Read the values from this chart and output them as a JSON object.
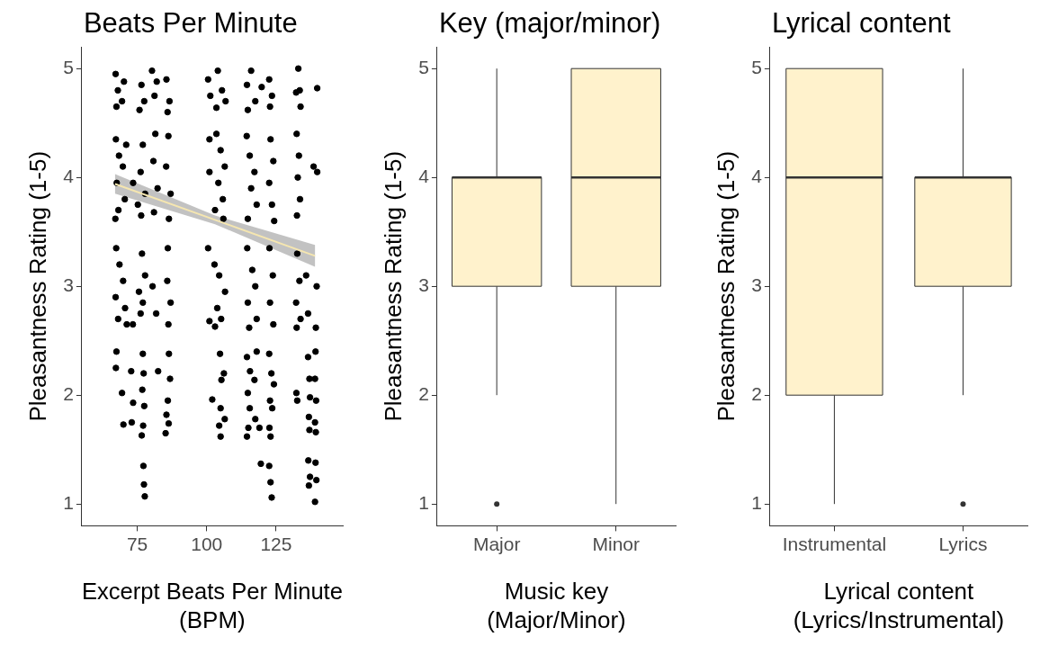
{
  "chart_data": [
    {
      "type": "scatter",
      "title": "Beats Per Minute",
      "xlabel": "Excerpt Beats Per Minute\n(BPM)",
      "ylabel": "Pleasantness Rating (1-5)",
      "xlim": [
        55,
        149
      ],
      "xticks": [
        75,
        100,
        125
      ],
      "ylim": [
        0.8,
        5.2
      ],
      "yticks": [
        1,
        2,
        3,
        4,
        5
      ],
      "grid": false,
      "legend": false,
      "marker": "circle",
      "series": [
        {
          "type": "scatter",
          "color": "#000000",
          "x": [
            67.2,
            68.0,
            69.5,
            67.5,
            70.2,
            67.3,
            68.4,
            69.8,
            67.6,
            70.5,
            68.2,
            67.1,
            71.0,
            67.4,
            68.6,
            69.9,
            67.2,
            70.6,
            68.1,
            71.2,
            67.5,
            67.3,
            69.5,
            70.0,
            73.0,
            73.5,
            72.8,
            77.0,
            77.3,
            76.8,
            77.5,
            77.1,
            76.6,
            77.2,
            77.4,
            77.7,
            76.5,
            77.5,
            75.8,
            77.0,
            76.2,
            77.8,
            76.4,
            75.2,
            73.5,
            76.7,
            77.8,
            75.6,
            76.2,
            73.4,
            77.0,
            80.3,
            81.2,
            82.0,
            81.5,
            80.8,
            82.3,
            81.0,
            80.5,
            81.8,
            82.5,
            85.5,
            86.6,
            85.9,
            86.2,
            85.4,
            87.0,
            86.4,
            86.0,
            85.8,
            87.0,
            86.2,
            86.4,
            86.8,
            86.0,
            85.5,
            85.2,
            86.3,
            100.5,
            104.0,
            105.5,
            106.8,
            101.3,
            103.5,
            101.0,
            103.5,
            105.0,
            106.5,
            104.2,
            105.8,
            103.0,
            106.0,
            101.0,
            100.5,
            102.8,
            104.5,
            106.6,
            103.8,
            105.2,
            101.0,
            103.0,
            104.8,
            106.2,
            105.3,
            102.0,
            105.0,
            106.5,
            104.5,
            105.0,
            114.5,
            116.0,
            117.5,
            114.8,
            119.8,
            114.4,
            115.5,
            117.2,
            116.0,
            118.0,
            114.8,
            114.6,
            116.4,
            117.5,
            114.8,
            118.0,
            115.3,
            114.5,
            115.6,
            118.0,
            117.2,
            114.8,
            115.5,
            117.5,
            115.0,
            114.5,
            119.0,
            119.5,
            122.5,
            123.5,
            122.8,
            123.0,
            124.0,
            122.5,
            123.5,
            124.3,
            122.6,
            123.8,
            122.8,
            124.0,
            122.5,
            123.3,
            124.2,
            122.8,
            123.6,
            122.6,
            123.0,
            122.5,
            123.0,
            123.4,
            133.0,
            133.5,
            132.2,
            133.8,
            132.4,
            133.2,
            132.8,
            133.6,
            132.5,
            132.6,
            133.4,
            132.2,
            133.8,
            132.4,
            132.3,
            132.6,
            135.8,
            136.5,
            136.5,
            137.0,
            137.2,
            136.8,
            137.0,
            139.2,
            139.0,
            139.4,
            139.0,
            139.3,
            136.6,
            137.2,
            136.8,
            139.2,
            139.5,
            139.0,
            139.8,
            139.8,
            138.5,
            139.6,
            139.3
          ],
          "values": [
            4.95,
            4.8,
            4.7,
            4.65,
            4.88,
            4.35,
            4.2,
            4.1,
            3.95,
            3.8,
            3.7,
            3.62,
            4.3,
            3.35,
            3.2,
            3.05,
            2.9,
            2.8,
            2.7,
            2.65,
            2.4,
            2.25,
            2.02,
            1.73,
            1.75,
            1.93,
            2.22,
            2.38,
            2.2,
            2.05,
            1.9,
            1.72,
            1.63,
            1.35,
            1.18,
            1.07,
            4.85,
            4.7,
            4.62,
            4.3,
            4.05,
            3.85,
            3.65,
            3.75,
            3.95,
            3.3,
            3.1,
            2.95,
            2.75,
            2.65,
            2.85,
            4.98,
            4.75,
            4.88,
            4.4,
            4.15,
            3.9,
            3.68,
            3.0,
            2.75,
            2.22,
            4.9,
            4.7,
            4.6,
            4.38,
            4.1,
            3.85,
            3.62,
            3.35,
            3.05,
            2.85,
            2.65,
            2.38,
            2.15,
            1.95,
            1.82,
            1.65,
            1.74,
            4.9,
            4.98,
            4.8,
            4.7,
            4.75,
            4.64,
            4.35,
            4.4,
            4.25,
            4.1,
            3.95,
            3.8,
            3.7,
            3.62,
            4.05,
            3.35,
            3.2,
            3.1,
            2.95,
            2.8,
            2.7,
            2.68,
            2.63,
            2.38,
            2.2,
            2.14,
            1.96,
            1.88,
            1.78,
            1.72,
            1.62,
            4.85,
            4.98,
            4.7,
            4.62,
            4.83,
            4.38,
            4.2,
            4.05,
            3.9,
            3.75,
            3.62,
            3.35,
            3.15,
            3.0,
            2.85,
            2.7,
            2.62,
            2.35,
            2.22,
            2.4,
            2.14,
            2.02,
            1.88,
            1.78,
            1.7,
            1.62,
            1.7,
            1.37,
            4.9,
            4.75,
            4.65,
            4.35,
            4.15,
            3.95,
            3.75,
            3.6,
            3.35,
            3.1,
            2.85,
            2.65,
            2.38,
            2.2,
            2.1,
            1.95,
            1.88,
            1.7,
            1.62,
            1.35,
            1.2,
            1.06,
            5.0,
            4.8,
            4.78,
            4.65,
            4.4,
            4.2,
            4.0,
            3.8,
            3.65,
            3.3,
            3.05,
            2.85,
            2.7,
            2.62,
            2.02,
            1.95,
            3.1,
            2.75,
            2.35,
            2.15,
            1.98,
            1.8,
            1.68,
            2.4,
            2.15,
            1.95,
            1.75,
            1.66,
            1.4,
            1.25,
            1.17,
            1.38,
            1.22,
            1.02,
            4.82,
            4.05,
            4.1,
            3.0,
            2.62
          ]
        },
        {
          "type": "line",
          "color": "#f5e6b0",
          "marker": "none",
          "x": [
            67,
            103,
            139
          ],
          "values": [
            3.94,
            3.61,
            3.28
          ],
          "lower": [
            3.85,
            3.57,
            3.18
          ],
          "upper": [
            4.03,
            3.65,
            3.38
          ]
        }
      ]
    },
    {
      "type": "box",
      "title": "Key (major/minor)",
      "xlabel": "Music key\n(Major/Minor)",
      "ylabel": "Pleasantness Rating (1-5)",
      "categories": [
        "Major",
        "Minor"
      ],
      "color": "#fff2cc",
      "ylim": [
        0.8,
        5.2
      ],
      "yticks": [
        1,
        2,
        3,
        4,
        5
      ],
      "grid": false,
      "legend": false,
      "boxes": [
        {
          "low": 2,
          "q1": 3,
          "median": 4,
          "q3": 4,
          "high": 5,
          "outliers": [
            1
          ]
        },
        {
          "low": 1,
          "q1": 3,
          "median": 4,
          "q3": 5,
          "high": 5
        }
      ]
    },
    {
      "type": "box",
      "title": "Lyrical content",
      "xlabel": "Lyrical content\n(Lyrics/Instrumental)",
      "ylabel": "Pleasantness Rating (1-5)",
      "categories": [
        "Instrumental",
        "Lyrics"
      ],
      "color": "#fff2cc",
      "ylim": [
        0.8,
        5.2
      ],
      "yticks": [
        1,
        2,
        3,
        4,
        5
      ],
      "grid": false,
      "legend": false,
      "boxes": [
        {
          "low": 1,
          "q1": 2,
          "median": 4,
          "q3": 5,
          "high": 5
        },
        {
          "low": 2,
          "q1": 3,
          "median": 4,
          "q3": 4,
          "high": 5,
          "outliers": [
            1
          ]
        }
      ]
    }
  ]
}
